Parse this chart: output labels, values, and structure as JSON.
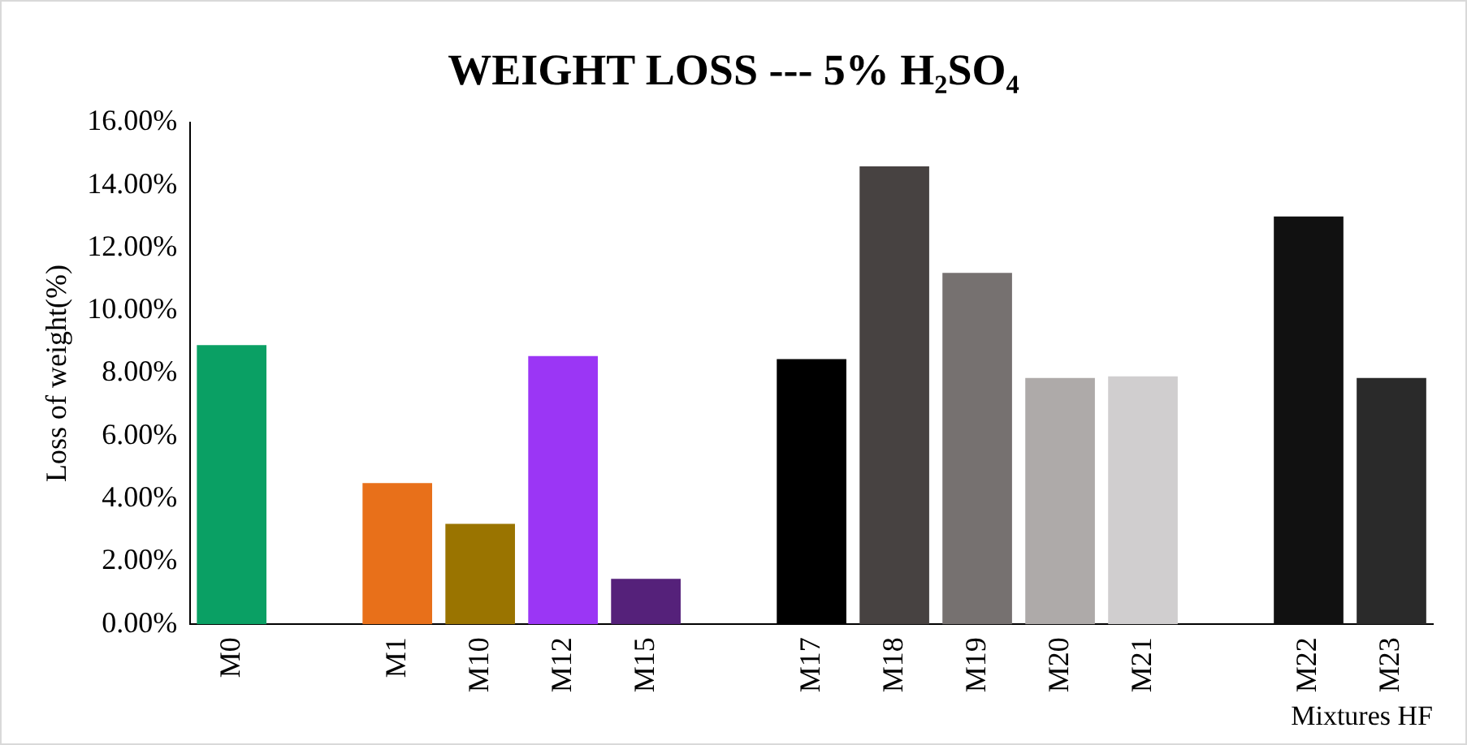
{
  "chart_data": {
    "type": "bar",
    "title": "WEIGHT LOSS --- 5% H₂SO₄",
    "xlabel": "Mixtures HF",
    "ylabel": "Loss of weight(%)",
    "categories": [
      "M0",
      null,
      "M1",
      "M10",
      "M12",
      "M15",
      null,
      "M17",
      "M18",
      "M19",
      "M20",
      "M21",
      null,
      "M22",
      "M23"
    ],
    "values": [
      8.9,
      null,
      4.5,
      3.2,
      8.55,
      1.45,
      null,
      8.45,
      14.6,
      11.2,
      7.85,
      7.9,
      null,
      13.0,
      7.85
    ],
    "colors": [
      "#0aa064",
      "#ffffff",
      "#e8701a",
      "#9a7400",
      "#9b36f5",
      "#55217a",
      "#ffffff",
      "#000000",
      "#474241",
      "#767170",
      "#aeaaa9",
      "#d0cecf",
      "#ffffff",
      "#111111",
      "#2a2a2a"
    ],
    "ylim": [
      0,
      16
    ],
    "yticks": [
      {
        "value": 0,
        "label": "0.00%"
      },
      {
        "value": 2,
        "label": "2.00%"
      },
      {
        "value": 4,
        "label": "4.00%"
      },
      {
        "value": 6,
        "label": "6.00%"
      },
      {
        "value": 8,
        "label": "8.00%"
      },
      {
        "value": 10,
        "label": "10.00%"
      },
      {
        "value": 12,
        "label": "12.00%"
      },
      {
        "value": 14,
        "label": "14.00%"
      },
      {
        "value": 16,
        "label": "16.00%"
      }
    ],
    "grid": false,
    "legend": false
  }
}
